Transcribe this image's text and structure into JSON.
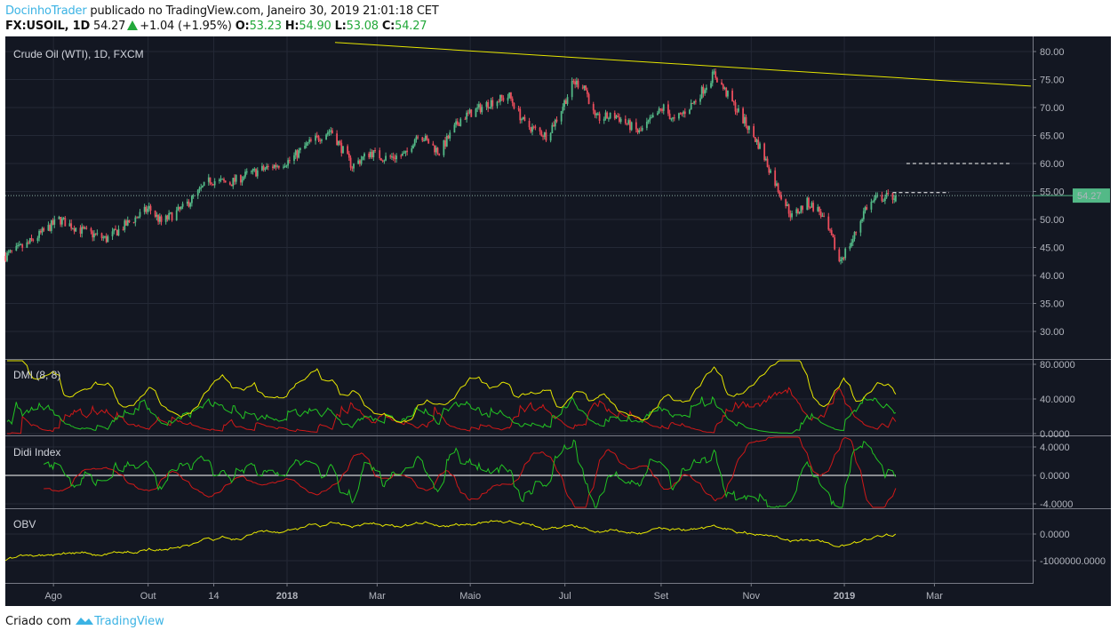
{
  "header": {
    "author": "DocinhoTrader",
    "published_text": " publicado no TradingView.com, Janeiro 30, 2019 21:01:18 CET",
    "symbol": "FX:USOIL, 1D",
    "last": "54.27",
    "change": "+1.04 (+1.95%)",
    "o_label": "O:",
    "o": "53.23",
    "h_label": "H:",
    "h": "54.90",
    "l_label": "L:",
    "l": "53.08",
    "c_label": "C:",
    "c": "54.27"
  },
  "footer": {
    "created_with": "Criado com",
    "brand": "TradingView"
  },
  "colors": {
    "bg": "#131722",
    "grid": "#242936",
    "up": "#53b987",
    "down": "#eb4d5c",
    "yellow": "#e6e600",
    "green": "#22c422",
    "red": "#d01818",
    "brand": "#3bb3e4"
  },
  "chart_data": {
    "type": "candlestick",
    "title": "Crude Oil (WTI), 1D, FXCM",
    "last_price_label": "54.27",
    "price_ticks": [
      "80.00",
      "75.00",
      "70.00",
      "65.00",
      "60.00",
      "55.00",
      "50.00",
      "45.00",
      "40.00",
      "35.00",
      "30.00"
    ],
    "ylim": [
      26,
      82
    ],
    "x_ticks": [
      {
        "label": "Ago",
        "date": "2017-08-01",
        "bold": false
      },
      {
        "label": "Out",
        "date": "2017-10-02",
        "bold": false
      },
      {
        "label": "14",
        "date": "2017-11-14",
        "bold": false
      },
      {
        "label": "2018",
        "date": "2018-01-01",
        "bold": true
      },
      {
        "label": "Mar",
        "date": "2018-03-01",
        "bold": false
      },
      {
        "label": "Maio",
        "date": "2018-05-01",
        "bold": false
      },
      {
        "label": "Jul",
        "date": "2018-07-02",
        "bold": false
      },
      {
        "label": "Set",
        "date": "2018-09-03",
        "bold": false
      },
      {
        "label": "Nov",
        "date": "2018-11-01",
        "bold": false
      },
      {
        "label": "2019",
        "date": "2019-01-01",
        "bold": true
      },
      {
        "label": "Mar",
        "date": "2019-03-01",
        "bold": false
      }
    ],
    "close_keypoints": [
      [
        "2017-06-26",
        43.5
      ],
      [
        "2017-07-10",
        45.5
      ],
      [
        "2017-07-31",
        50
      ],
      [
        "2017-08-15",
        48
      ],
      [
        "2017-08-31",
        46.5
      ],
      [
        "2017-09-15",
        49.5
      ],
      [
        "2017-09-28",
        52
      ],
      [
        "2017-10-06",
        49.5
      ],
      [
        "2017-10-20",
        52
      ],
      [
        "2017-11-07",
        57
      ],
      [
        "2017-11-20",
        56.5
      ],
      [
        "2017-12-01",
        58
      ],
      [
        "2017-12-29",
        60.5
      ],
      [
        "2018-01-10",
        63.5
      ],
      [
        "2018-01-25",
        66
      ],
      [
        "2018-02-08",
        59.5
      ],
      [
        "2018-02-20",
        62
      ],
      [
        "2018-03-01",
        61
      ],
      [
        "2018-03-15",
        61.5
      ],
      [
        "2018-03-23",
        65.5
      ],
      [
        "2018-04-06",
        62
      ],
      [
        "2018-04-20",
        68
      ],
      [
        "2018-05-10",
        71
      ],
      [
        "2018-05-22",
        72
      ],
      [
        "2018-06-01",
        67
      ],
      [
        "2018-06-15",
        65
      ],
      [
        "2018-06-22",
        68
      ],
      [
        "2018-07-03",
        74.5
      ],
      [
        "2018-07-10",
        74
      ],
      [
        "2018-07-17",
        68
      ],
      [
        "2018-07-31",
        68.5
      ],
      [
        "2018-08-15",
        65.5
      ],
      [
        "2018-08-31",
        70
      ],
      [
        "2018-09-07",
        67.5
      ],
      [
        "2018-09-20",
        71
      ],
      [
        "2018-10-03",
        76
      ],
      [
        "2018-10-10",
        73
      ],
      [
        "2018-10-24",
        67
      ],
      [
        "2018-11-02",
        63
      ],
      [
        "2018-11-13",
        56
      ],
      [
        "2018-11-23",
        50.5
      ],
      [
        "2018-12-03",
        53
      ],
      [
        "2018-12-11",
        51.5
      ],
      [
        "2018-12-20",
        46
      ],
      [
        "2018-12-24",
        42.5
      ],
      [
        "2019-01-02",
        46.5
      ],
      [
        "2019-01-10",
        52
      ],
      [
        "2019-01-18",
        53.8
      ],
      [
        "2019-01-30",
        54.27
      ]
    ],
    "last_candle": {
      "open": 53.23,
      "high": 54.9,
      "low": 53.08,
      "close": 54.27
    },
    "trendline": {
      "from": [
        "2017-12-25",
        82.2
      ],
      "to": [
        "2019-04-30",
        73.8
      ]
    },
    "dashed_levels": [
      {
        "price": 60.0,
        "from": "2019-02-06",
        "to": "2019-04-15"
      },
      {
        "price": 54.8,
        "from": "2019-01-28",
        "to": "2019-03-06"
      }
    ],
    "indicators": [
      {
        "name": "DMI (8, 8)",
        "series": [
          "+DI",
          "-DI",
          "ADX"
        ],
        "ticks": [
          "80.0000",
          "40.0000",
          "0.0000"
        ],
        "ylim": [
          0,
          80
        ]
      },
      {
        "name": "Didi Index",
        "series": [
          "fast",
          "slow"
        ],
        "ticks": [
          "4.0000",
          "0.0000",
          "-4.0000"
        ],
        "ylim": [
          -4,
          4
        ]
      },
      {
        "name": "OBV",
        "ticks": [
          "0.0000",
          "-1000000.0000"
        ],
        "ylim": [
          -1800000,
          900000
        ]
      }
    ]
  }
}
